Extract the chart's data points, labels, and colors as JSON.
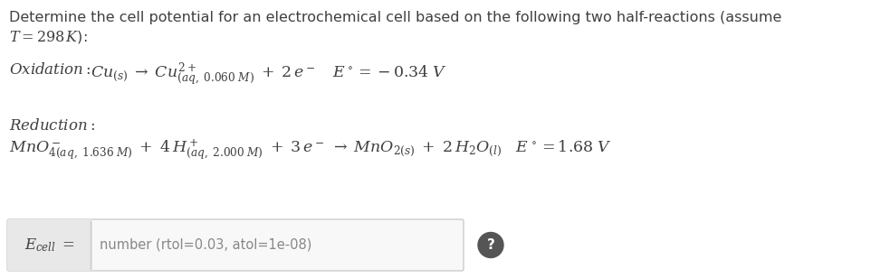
{
  "bg_color": "#ffffff",
  "text_color": "#404040",
  "gray_text": "#888888",
  "box_border": "#cccccc",
  "label_bg": "#e8e8e8",
  "input_bg": "#f8f8f8",
  "font_size_title": 11.5,
  "font_size_eq": 12.5,
  "font_size_label": 12,
  "font_size_input": 10.5,
  "answer_placeholder": "number (rtol=0.03, atol=1e-08)"
}
